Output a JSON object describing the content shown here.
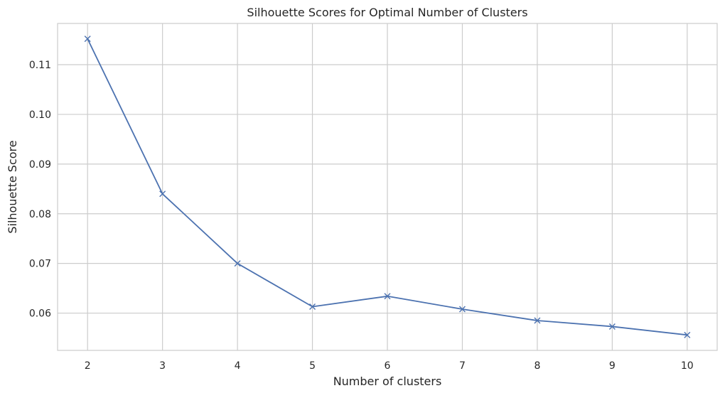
{
  "chart_data": {
    "type": "line",
    "title": "Silhouette Scores for Optimal Number of Clusters",
    "xlabel": "Number of clusters",
    "ylabel": "Silhouette Score",
    "xlim": [
      1.6,
      10.4
    ],
    "ylim": [
      0.0525,
      0.1183
    ],
    "xticks": [
      2,
      3,
      4,
      5,
      6,
      7,
      8,
      9,
      10
    ],
    "yticks": [
      0.06,
      0.07,
      0.08,
      0.09,
      0.1,
      0.11
    ],
    "ytick_labels": [
      "0.06",
      "0.07",
      "0.08",
      "0.09",
      "0.10",
      "0.11"
    ],
    "grid": true,
    "legend": "none",
    "marker": "x",
    "color": "#4c72b0",
    "series": [
      {
        "x": [
          2,
          3,
          4,
          5,
          6,
          7,
          8,
          9,
          10
        ],
        "values": [
          0.1152,
          0.084,
          0.07,
          0.0613,
          0.0634,
          0.0608,
          0.0585,
          0.0573,
          0.0556
        ]
      }
    ]
  }
}
